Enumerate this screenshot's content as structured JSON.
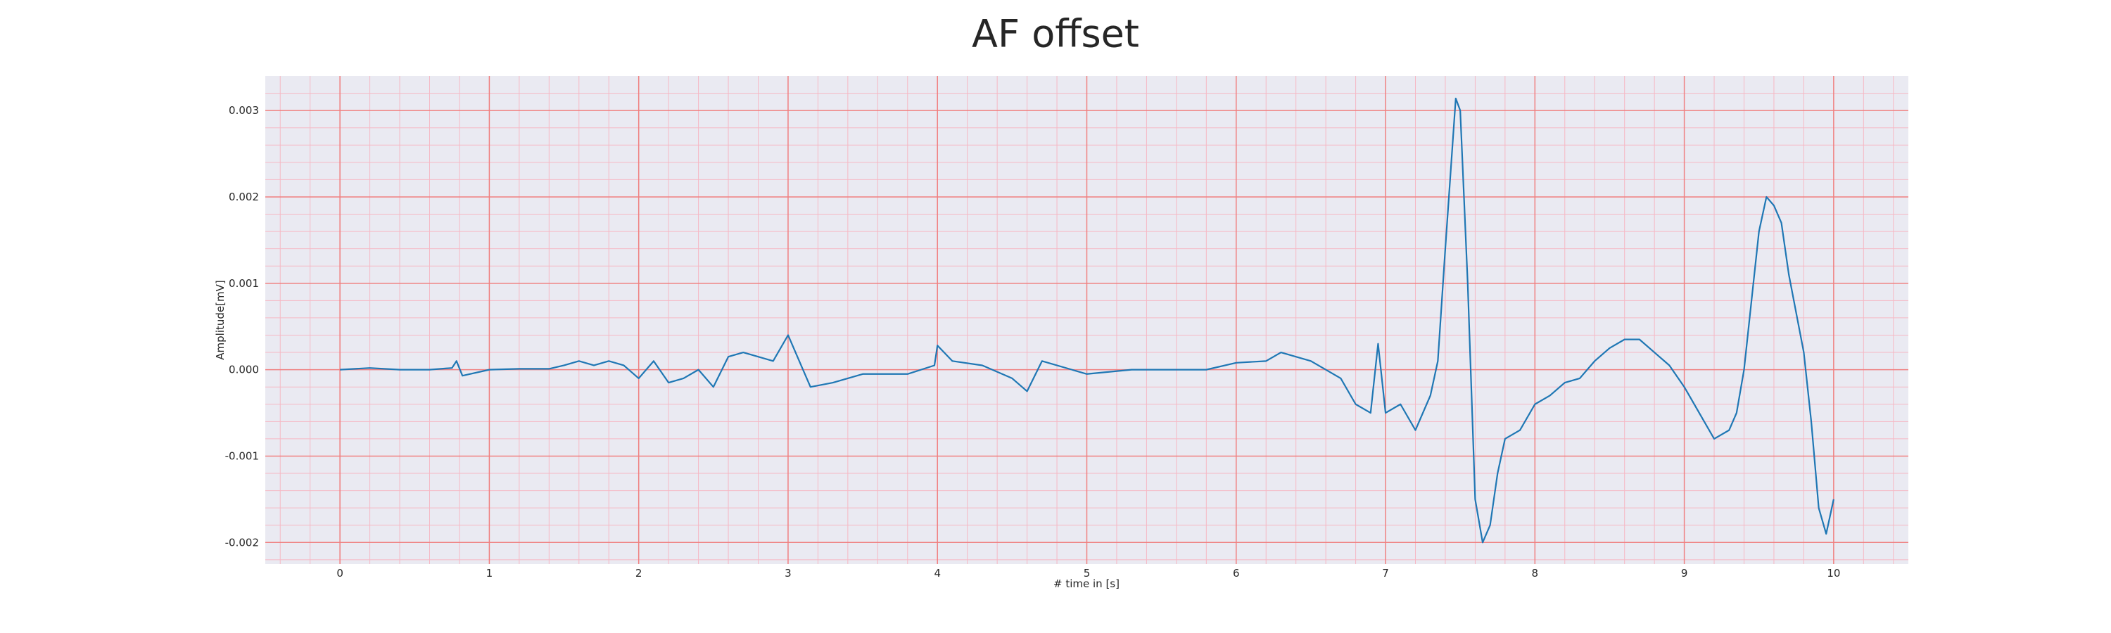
{
  "chart_data": {
    "type": "line",
    "title": "AF offset",
    "x_label": "# time in [s]",
    "y_label": "Amplitude[mV]",
    "xlim": [
      -0.5,
      10.5
    ],
    "ylim": [
      -0.00225,
      0.0034
    ],
    "xticks": [
      0,
      1,
      2,
      3,
      4,
      5,
      6,
      7,
      8,
      9,
      10
    ],
    "yticks": [
      -0.002,
      -0.001,
      {
        "value": 0,
        "label": "0.000"
      },
      0.001,
      0.002,
      0.003
    ],
    "grid": true,
    "minor_grid": true,
    "series": [
      {
        "name": "AF offset",
        "color": "#1f77b4",
        "x": [
          0,
          0.2,
          0.4,
          0.6,
          0.75,
          0.78,
          0.82,
          1.0,
          1.2,
          1.4,
          1.5,
          1.6,
          1.7,
          1.8,
          1.9,
          2.0,
          2.1,
          2.2,
          2.3,
          2.4,
          2.5,
          2.6,
          2.7,
          2.8,
          2.9,
          3.0,
          3.1,
          3.15,
          3.3,
          3.5,
          3.8,
          3.98,
          4.0,
          4.1,
          4.3,
          4.5,
          4.6,
          4.7,
          4.9,
          5.0,
          5.3,
          5.5,
          5.8,
          6.0,
          6.2,
          6.3,
          6.5,
          6.7,
          6.8,
          6.9,
          6.95,
          7.0,
          7.1,
          7.2,
          7.3,
          7.35,
          7.4,
          7.47,
          7.5,
          7.55,
          7.6,
          7.65,
          7.7,
          7.75,
          7.8,
          7.9,
          8.0,
          8.1,
          8.2,
          8.3,
          8.4,
          8.5,
          8.6,
          8.7,
          8.8,
          8.9,
          9.0,
          9.1,
          9.2,
          9.3,
          9.35,
          9.4,
          9.45,
          9.5,
          9.55,
          9.6,
          9.65,
          9.7,
          9.8,
          9.85,
          9.9,
          9.95,
          10.0
        ],
        "values": [
          0,
          2e-05,
          0,
          0,
          2e-05,
          0.0001,
          -7e-05,
          0,
          1e-05,
          1e-05,
          5e-05,
          0.0001,
          5e-05,
          0.0001,
          5e-05,
          -0.0001,
          0.0001,
          -0.00015,
          -0.0001,
          0,
          -0.0002,
          0.00015,
          0.0002,
          0.00015,
          0.0001,
          0.0004,
          0,
          -0.0002,
          -0.00015,
          -5e-05,
          -5e-05,
          5e-05,
          0.00028,
          0.0001,
          5e-05,
          -0.0001,
          -0.00025,
          0.0001,
          0,
          -5e-05,
          0,
          0,
          0,
          8e-05,
          0.0001,
          0.0002,
          0.0001,
          -0.0001,
          -0.0004,
          -0.0005,
          0.0003,
          -0.0005,
          -0.0004,
          -0.0007,
          -0.0003,
          0.0001,
          0.0014,
          0.00314,
          0.003,
          0.001,
          -0.0015,
          -0.002,
          -0.0018,
          -0.0012,
          -0.0008,
          -0.0007,
          -0.0004,
          -0.0003,
          -0.00015,
          -0.0001,
          0.0001,
          0.00025,
          0.00035,
          0.00035,
          0.0002,
          5e-05,
          -0.0002,
          -0.0005,
          -0.0008,
          -0.0007,
          -0.0005,
          0,
          0.0008,
          0.0016,
          0.002,
          0.0019,
          0.0017,
          0.0011,
          0.0002,
          -0.0006,
          -0.0016,
          -0.0019,
          -0.0015
        ]
      }
    ]
  }
}
